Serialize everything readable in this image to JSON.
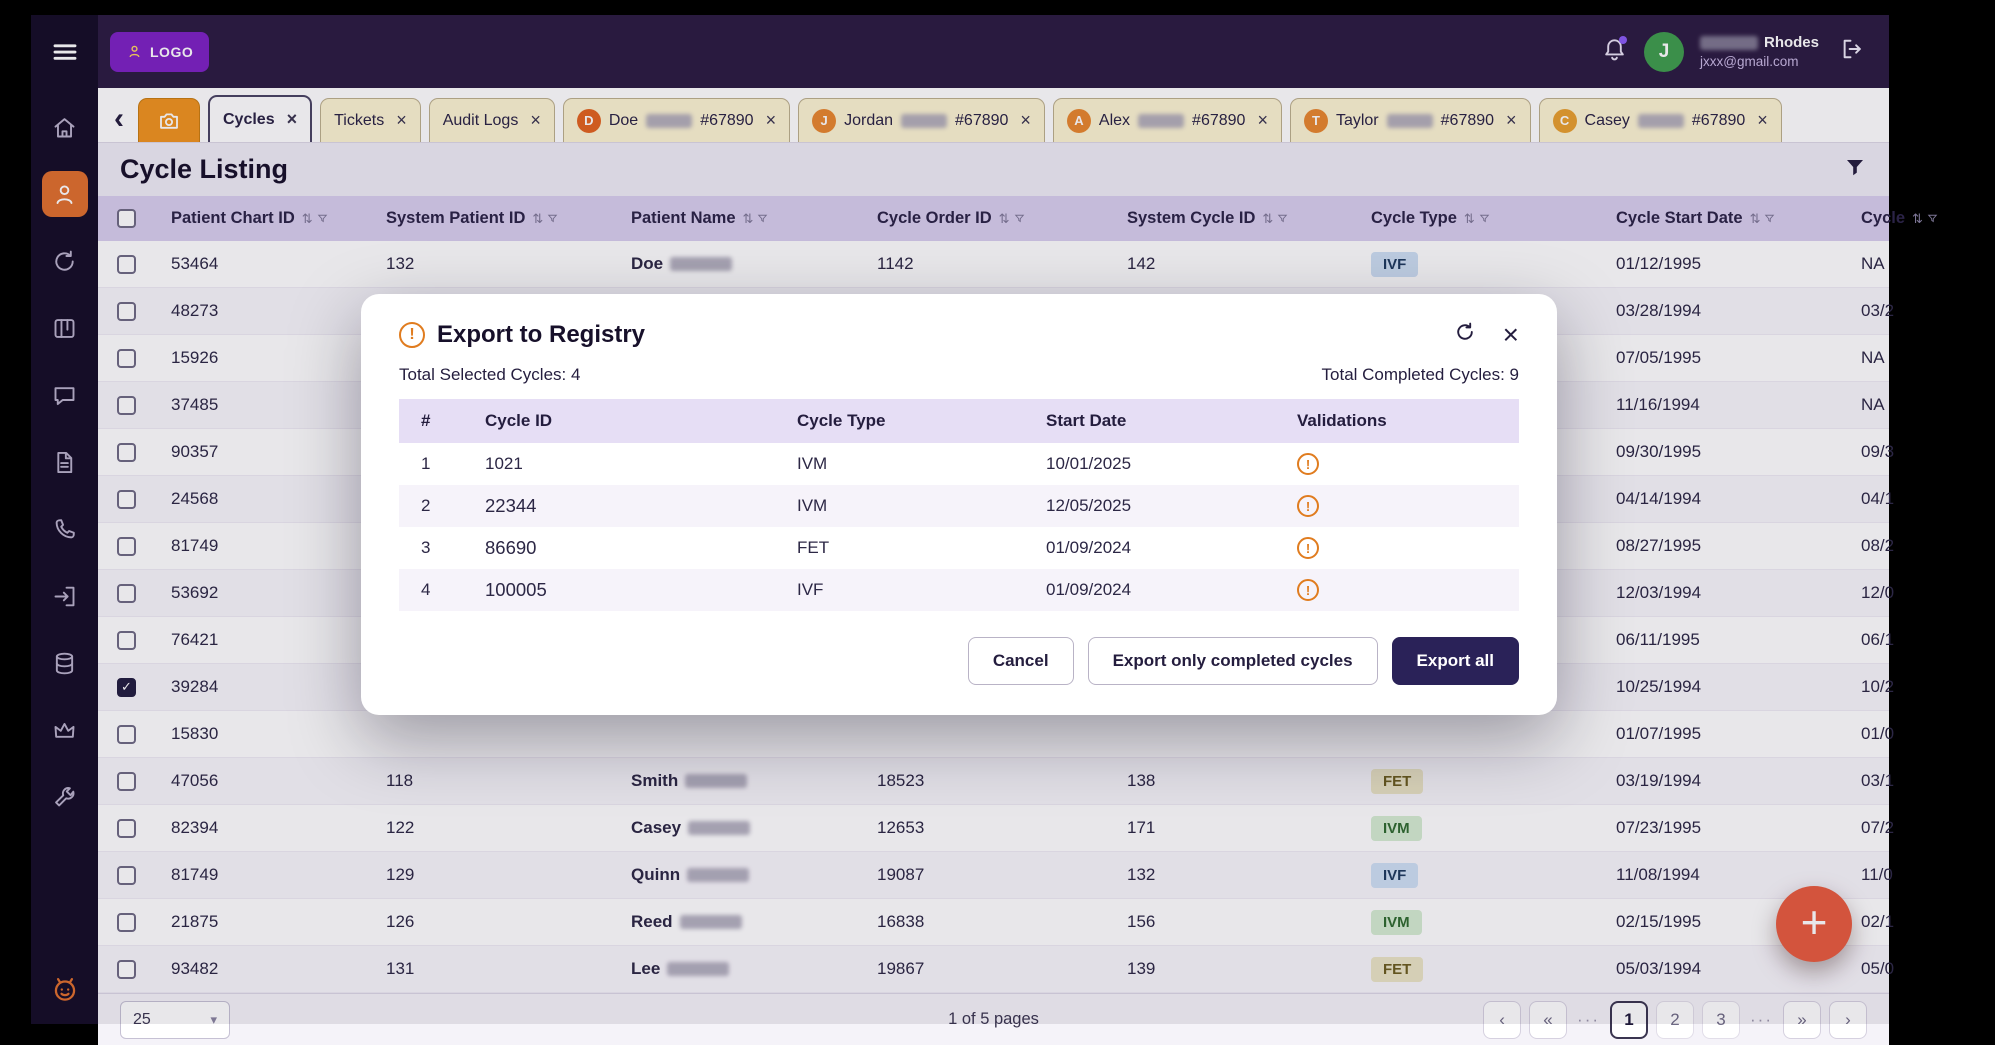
{
  "app": {
    "logo": "LOGO",
    "user": {
      "initial": "J",
      "first_name_redacted": true,
      "last_name": "Rhodes",
      "email": "jxxx@gmail.com"
    }
  },
  "sidebar": {
    "items": [
      "home",
      "patients",
      "cycles",
      "board",
      "messages",
      "documents",
      "support",
      "login",
      "database",
      "crown",
      "tools"
    ],
    "active": "patients"
  },
  "tabs": {
    "back_icon": "‹",
    "items": [
      {
        "label": "Cycles",
        "active": true
      },
      {
        "label": "Tickets",
        "active": false
      },
      {
        "label": "Audit Logs",
        "active": false
      }
    ],
    "patients": [
      {
        "initial": "D",
        "name": "Doe",
        "number": "#67890",
        "color": "#e2641f"
      },
      {
        "initial": "J",
        "name": "Jordan",
        "number": "#67890",
        "color": "#e8872e"
      },
      {
        "initial": "A",
        "name": "Alex",
        "number": "#67890",
        "color": "#e8872e"
      },
      {
        "initial": "T",
        "name": "Taylor",
        "number": "#67890",
        "color": "#e8872e"
      },
      {
        "initial": "C",
        "name": "Casey",
        "number": "#67890",
        "color": "#e8a02e"
      }
    ]
  },
  "page": {
    "title": "Cycle Listing"
  },
  "table": {
    "columns": [
      "Patient Chart ID",
      "System Patient ID",
      "Patient Name",
      "Cycle Order ID",
      "System Cycle ID",
      "Cycle Type",
      "Cycle Start Date",
      "Cycle"
    ],
    "badge_colors": {
      "IVF": {
        "bg": "#cfe0f4",
        "fg": "#1e3a5f"
      },
      "FET": {
        "bg": "#eae5c6",
        "fg": "#6b5d1f"
      },
      "IVM": {
        "bg": "#d5ecd2",
        "fg": "#2f6b2f"
      }
    },
    "rows": [
      {
        "checked": false,
        "chart_id": "53464",
        "system_patient_id": "132",
        "patient_name": "Doe",
        "name_redacted": true,
        "cycle_order_id": "1142",
        "system_cycle_id": "142",
        "cycle_type": "IVF",
        "start_date": "01/12/1995",
        "end_date": "NA"
      },
      {
        "checked": false,
        "chart_id": "48273",
        "system_patient_id": "",
        "patient_name": "",
        "name_redacted": false,
        "cycle_order_id": "",
        "system_cycle_id": "",
        "cycle_type": "",
        "start_date": "03/28/1994",
        "end_date": "03/2"
      },
      {
        "checked": false,
        "chart_id": "15926",
        "system_patient_id": "",
        "patient_name": "",
        "name_redacted": false,
        "cycle_order_id": "",
        "system_cycle_id": "",
        "cycle_type": "",
        "start_date": "07/05/1995",
        "end_date": "NA"
      },
      {
        "checked": false,
        "chart_id": "37485",
        "system_patient_id": "",
        "patient_name": "",
        "name_redacted": false,
        "cycle_order_id": "",
        "system_cycle_id": "",
        "cycle_type": "",
        "start_date": "11/16/1994",
        "end_date": "NA"
      },
      {
        "checked": false,
        "chart_id": "90357",
        "system_patient_id": "",
        "patient_name": "",
        "name_redacted": false,
        "cycle_order_id": "",
        "system_cycle_id": "",
        "cycle_type": "",
        "start_date": "09/30/1995",
        "end_date": "09/3"
      },
      {
        "checked": false,
        "chart_id": "24568",
        "system_patient_id": "",
        "patient_name": "",
        "name_redacted": false,
        "cycle_order_id": "",
        "system_cycle_id": "",
        "cycle_type": "",
        "start_date": "04/14/1994",
        "end_date": "04/1"
      },
      {
        "checked": false,
        "chart_id": "81749",
        "system_patient_id": "",
        "patient_name": "",
        "name_redacted": false,
        "cycle_order_id": "",
        "system_cycle_id": "",
        "cycle_type": "",
        "start_date": "08/27/1995",
        "end_date": "08/2"
      },
      {
        "checked": false,
        "chart_id": "53692",
        "system_patient_id": "",
        "patient_name": "",
        "name_redacted": false,
        "cycle_order_id": "",
        "system_cycle_id": "",
        "cycle_type": "",
        "start_date": "12/03/1994",
        "end_date": "12/0"
      },
      {
        "checked": false,
        "chart_id": "76421",
        "system_patient_id": "",
        "patient_name": "",
        "name_redacted": false,
        "cycle_order_id": "",
        "system_cycle_id": "",
        "cycle_type": "",
        "start_date": "06/11/1995",
        "end_date": "06/1"
      },
      {
        "checked": true,
        "chart_id": "39284",
        "system_patient_id": "",
        "patient_name": "",
        "name_redacted": false,
        "cycle_order_id": "",
        "system_cycle_id": "",
        "cycle_type": "",
        "start_date": "10/25/1994",
        "end_date": "10/2"
      },
      {
        "checked": false,
        "chart_id": "15830",
        "system_patient_id": "",
        "patient_name": "",
        "name_redacted": false,
        "cycle_order_id": "",
        "system_cycle_id": "",
        "cycle_type": "",
        "start_date": "01/07/1995",
        "end_date": "01/0"
      },
      {
        "checked": false,
        "chart_id": "47056",
        "system_patient_id": "118",
        "patient_name": "Smith",
        "name_redacted": true,
        "cycle_order_id": "18523",
        "system_cycle_id": "138",
        "cycle_type": "FET",
        "start_date": "03/19/1994",
        "end_date": "03/1"
      },
      {
        "checked": false,
        "chart_id": "82394",
        "system_patient_id": "122",
        "patient_name": "Casey",
        "name_redacted": true,
        "cycle_order_id": "12653",
        "system_cycle_id": "171",
        "cycle_type": "IVM",
        "start_date": "07/23/1995",
        "end_date": "07/2"
      },
      {
        "checked": false,
        "chart_id": "81749",
        "system_patient_id": "129",
        "patient_name": "Quinn",
        "name_redacted": true,
        "cycle_order_id": "19087",
        "system_cycle_id": "132",
        "cycle_type": "IVF",
        "start_date": "11/08/1994",
        "end_date": "11/0"
      },
      {
        "checked": false,
        "chart_id": "21875",
        "system_patient_id": "126",
        "patient_name": "Reed",
        "name_redacted": true,
        "cycle_order_id": "16838",
        "system_cycle_id": "156",
        "cycle_type": "IVM",
        "start_date": "02/15/1995",
        "end_date": "02/1"
      },
      {
        "checked": false,
        "chart_id": "93482",
        "system_patient_id": "131",
        "patient_name": "Lee",
        "name_redacted": true,
        "cycle_order_id": "19867",
        "system_cycle_id": "139",
        "cycle_type": "FET",
        "start_date": "05/03/1994",
        "end_date": "05/0"
      }
    ]
  },
  "modal": {
    "title": "Export to Registry",
    "selected_label": "Total Selected Cycles: 4",
    "completed_label": "Total Completed Cycles: 9",
    "columns": [
      "#",
      "Cycle ID",
      "Cycle Type",
      "Start Date",
      "Validations"
    ],
    "rows": [
      {
        "num": "1",
        "cycle_id": "1021",
        "cycle_type": "IVM",
        "start_date": "10/01/2025"
      },
      {
        "num": "2",
        "cycle_id": "22344",
        "cycle_type": "IVM",
        "start_date": "12/05/2025"
      },
      {
        "num": "3",
        "cycle_id": "86690",
        "cycle_type": "FET",
        "start_date": "01/09/2024"
      },
      {
        "num": "4",
        "cycle_id": "100005",
        "cycle_type": "IVF",
        "start_date": "01/09/2024"
      }
    ],
    "buttons": {
      "cancel": "Cancel",
      "export_completed": "Export only completed cycles",
      "export_all": "Export all"
    }
  },
  "footer": {
    "page_size": "25",
    "page_info": "1 of 5 pages",
    "pages": [
      "1",
      "2",
      "3"
    ],
    "active_page": "1",
    "ellipsis": "···"
  },
  "fab": "+"
}
